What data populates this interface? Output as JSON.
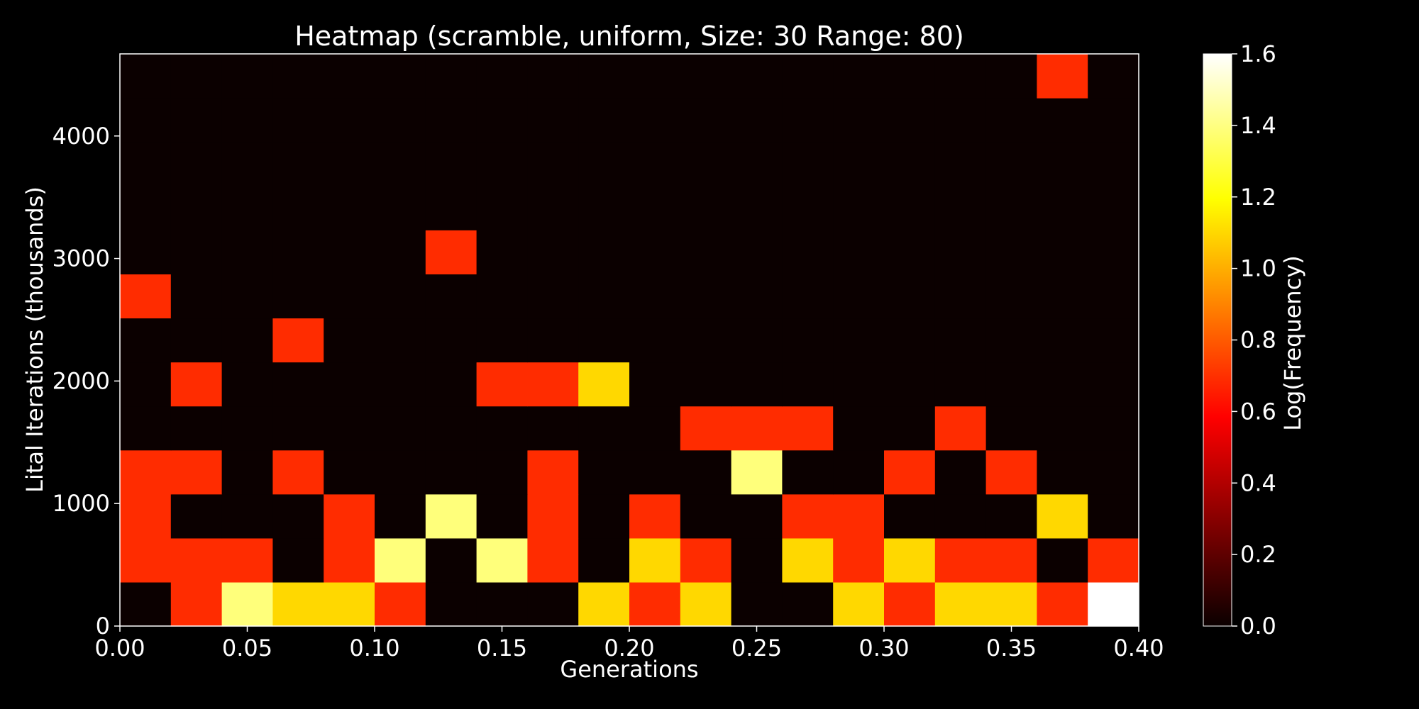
{
  "chart_data": {
    "type": "heatmap",
    "title": "Heatmap (scramble, uniform, Size: 30 Range: 80)",
    "xlabel": "Generations",
    "ylabel": "Lital Iterations (thousands)",
    "xlim": [
      0.0,
      0.4
    ],
    "ylim": [
      0,
      4670
    ],
    "x_ticks": [
      "0.00",
      "0.05",
      "0.10",
      "0.15",
      "0.20",
      "0.25",
      "0.30",
      "0.35",
      "0.40"
    ],
    "y_ticks": [
      "0",
      "1000",
      "2000",
      "3000",
      "4000"
    ],
    "x_tick_values": [
      0.0,
      0.05,
      0.1,
      0.15,
      0.2,
      0.25,
      0.3,
      0.35,
      0.4
    ],
    "y_tick_values": [
      0,
      1000,
      2000,
      3000,
      4000
    ],
    "x_bins": 20,
    "y_bins": 13,
    "colormap": "hot",
    "colorbar": {
      "label": "Log(Frequency)",
      "range": [
        0.0,
        1.6
      ],
      "ticks": [
        "0.0",
        "0.2",
        "0.4",
        "0.6",
        "0.8",
        "1.0",
        "1.2",
        "1.4",
        "1.6"
      ],
      "tick_values": [
        0.0,
        0.2,
        0.4,
        0.6,
        0.8,
        1.0,
        1.2,
        1.4,
        1.6
      ]
    },
    "values": [
      [
        0,
        0.69,
        1.39,
        1.1,
        1.1,
        0.69,
        0,
        0,
        0,
        1.1,
        0.69,
        1.1,
        0,
        0,
        1.1,
        0.69,
        1.1,
        1.1,
        0.69,
        1.61
      ],
      [
        0.69,
        0.69,
        0.69,
        0,
        0.69,
        1.39,
        0,
        1.39,
        0.69,
        0,
        1.1,
        0.69,
        0,
        1.1,
        0.69,
        1.1,
        0.69,
        0.69,
        0,
        0.69
      ],
      [
        0.69,
        0,
        0,
        0,
        0.69,
        0,
        1.39,
        0,
        0.69,
        0,
        0.69,
        0,
        0,
        0.69,
        0.69,
        0,
        0,
        0,
        1.1,
        0
      ],
      [
        0.69,
        0.69,
        0,
        0.69,
        0,
        0,
        0,
        0,
        0.69,
        0,
        0,
        0,
        1.39,
        0,
        0,
        0.69,
        0,
        0.69,
        0,
        0
      ],
      [
        0,
        0,
        0,
        0,
        0,
        0,
        0,
        0,
        0,
        0,
        0,
        0.69,
        0.69,
        0.69,
        0,
        0,
        0.69,
        0,
        0,
        0
      ],
      [
        0,
        0.69,
        0,
        0,
        0,
        0,
        0,
        0.69,
        0.69,
        1.1,
        0,
        0,
        0,
        0,
        0,
        0,
        0,
        0,
        0,
        0
      ],
      [
        0,
        0,
        0,
        0.69,
        0,
        0,
        0,
        0,
        0,
        0,
        0,
        0,
        0,
        0,
        0,
        0,
        0,
        0,
        0,
        0
      ],
      [
        0.69,
        0,
        0,
        0,
        0,
        0,
        0,
        0,
        0,
        0,
        0,
        0,
        0,
        0,
        0,
        0,
        0,
        0,
        0,
        0
      ],
      [
        0,
        0,
        0,
        0,
        0,
        0,
        0.69,
        0,
        0,
        0,
        0,
        0,
        0,
        0,
        0,
        0,
        0,
        0,
        0,
        0
      ],
      [
        0,
        0,
        0,
        0,
        0,
        0,
        0,
        0,
        0,
        0,
        0,
        0,
        0,
        0,
        0,
        0,
        0,
        0,
        0,
        0
      ],
      [
        0,
        0,
        0,
        0,
        0,
        0,
        0,
        0,
        0,
        0,
        0,
        0,
        0,
        0,
        0,
        0,
        0,
        0,
        0,
        0
      ],
      [
        0,
        0,
        0,
        0,
        0,
        0,
        0,
        0,
        0,
        0,
        0,
        0,
        0,
        0,
        0,
        0,
        0,
        0,
        0,
        0
      ],
      [
        0,
        0,
        0,
        0,
        0,
        0,
        0,
        0,
        0,
        0,
        0,
        0,
        0,
        0,
        0,
        0,
        0,
        0,
        0.69,
        0
      ]
    ],
    "colors": {
      "background": "#000000",
      "empty_cell": "#0b0000",
      "text": "#ffffff"
    }
  }
}
